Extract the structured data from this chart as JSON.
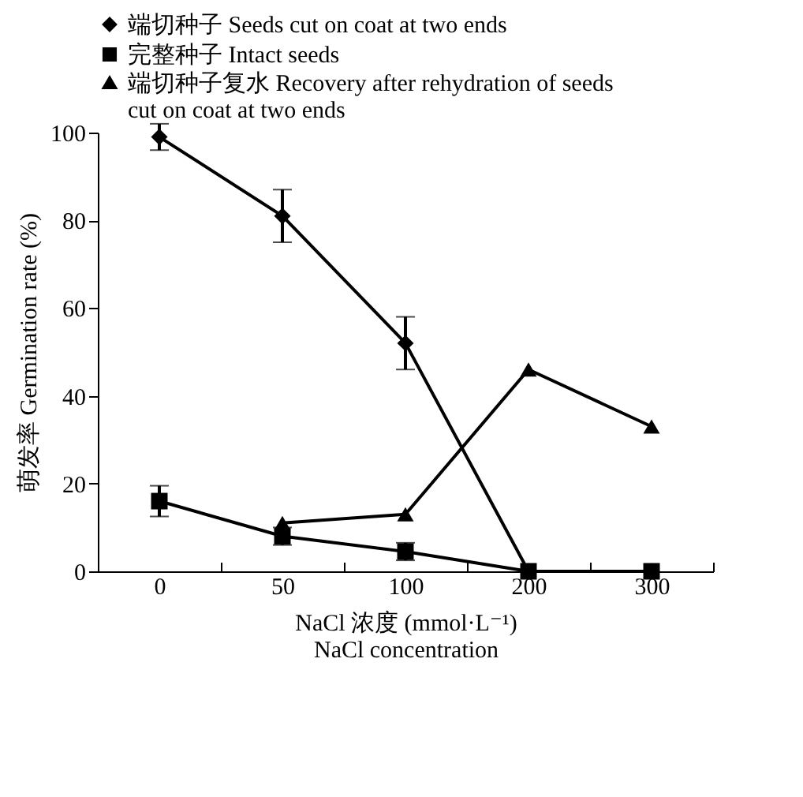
{
  "chart_data": {
    "type": "line",
    "xlabel": "NaCl 浓度 (mmol·L⁻¹)\nNaCl concentration",
    "ylabel": "萌发率 Germination rate (%)",
    "categories": [
      "0",
      "50",
      "100",
      "200",
      "300"
    ],
    "ylim": [
      0,
      100
    ],
    "yticks": [
      0,
      20,
      40,
      60,
      80,
      100
    ],
    "grid": false,
    "legend": "top",
    "line_style": "solid",
    "series": [
      {
        "name": "端切种子 Seeds cut on coat at two ends",
        "color": "#000000",
        "marker": "diamond",
        "values": [
          99,
          81,
          52,
          0,
          0
        ],
        "errors": [
          3,
          6,
          6,
          null,
          null
        ]
      },
      {
        "name": "完整种子 Intact seeds",
        "color": "#000000",
        "marker": "square",
        "values": [
          16,
          8,
          4.5,
          0,
          0
        ],
        "errors": [
          3.5,
          2,
          2,
          null,
          null
        ]
      },
      {
        "name": "端切种子复水 Recovery after rehydration of seeds cut on coat at two ends",
        "color": "#000000",
        "marker": "triangle",
        "values": [
          null,
          11,
          13,
          46,
          33
        ]
      }
    ]
  }
}
